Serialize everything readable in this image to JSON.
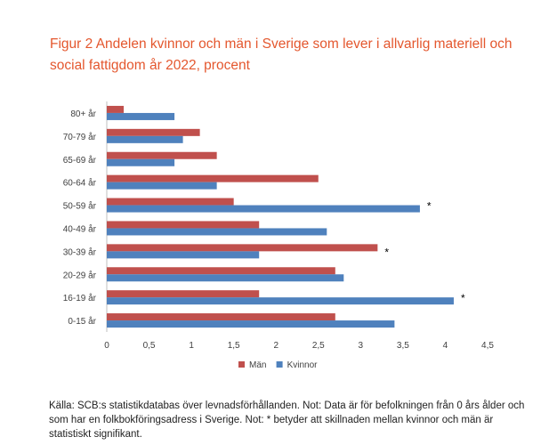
{
  "figure": {
    "title": "Figur 2 Andelen kvinnor och män i Sverige som lever i allvarlig materiell och social fattigdom år 2022, procent",
    "source_note": "Källa: SCB:s statistikdatabas över levnadsförhållanden. Not: Data är för befolkningen från 0 års ålder och som har en folkbokföringsadress i Sverige.  Not: * betyder att skillnaden mellan kvinnor och män är statistiskt signifikant."
  },
  "chart_data": {
    "type": "bar",
    "orientation": "horizontal",
    "categories": [
      "80+ år",
      "70-79 år",
      "65-69 år",
      "60-64 år",
      "50-59 år",
      "40-49 år",
      "30-39 år",
      "20-29 år",
      "16-19 år",
      "0-15 år"
    ],
    "series": [
      {
        "name": "Män",
        "color": "#c0504d",
        "values": [
          0.2,
          1.1,
          1.3,
          2.5,
          1.5,
          1.8,
          3.2,
          2.7,
          1.8,
          2.7
        ]
      },
      {
        "name": "Kvinnor",
        "color": "#4f81bd",
        "values": [
          0.8,
          0.9,
          0.8,
          1.3,
          3.7,
          2.6,
          1.8,
          2.8,
          4.1,
          3.4
        ]
      }
    ],
    "significance_marker": "*",
    "significant": [
      false,
      false,
      false,
      false,
      true,
      false,
      true,
      false,
      true,
      false
    ],
    "x_ticks": [
      "0",
      "0,5",
      "1",
      "1,5",
      "2",
      "2,5",
      "3",
      "3,5",
      "4",
      "4,5"
    ],
    "xlim": [
      0,
      4.5
    ],
    "grid": false,
    "legend": "bottom",
    "xlabel": "",
    "ylabel": ""
  }
}
